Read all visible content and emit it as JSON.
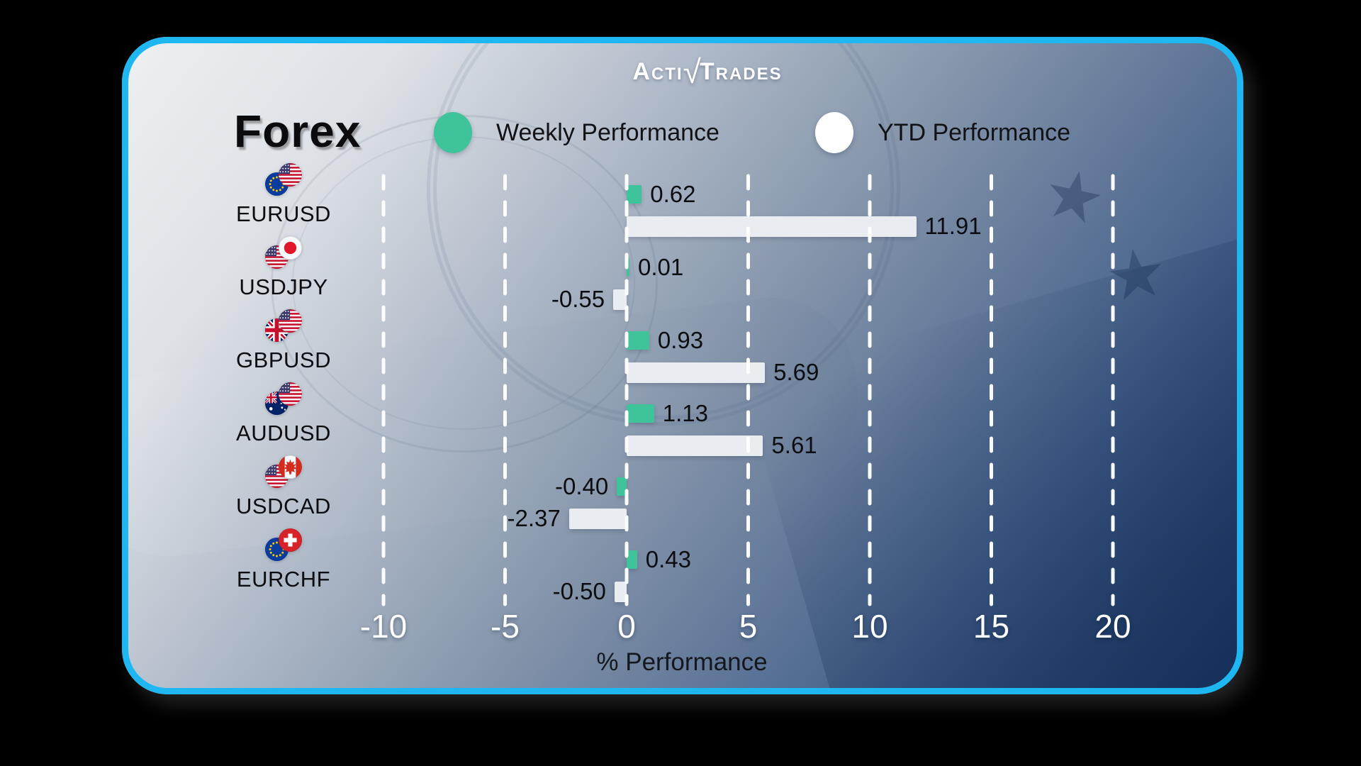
{
  "brand": {
    "full": "ActivTrades",
    "part1": "Acti",
    "separator": "√",
    "part2": "Trades"
  },
  "title": "Forex",
  "legend": {
    "items": [
      {
        "label": "Weekly Performance",
        "color": "#3fc39a"
      },
      {
        "label": "YTD Performance",
        "color": "#ffffff"
      }
    ]
  },
  "colors": {
    "card_border": "#1eb7f2",
    "bar_green": "#3fc39a",
    "bar_white": "#e9ecf0",
    "outer_background": "#000000",
    "axis_text": "#ffffff",
    "label_text": "#0b0d10"
  },
  "chart_data": {
    "type": "bar",
    "orientation": "horizontal",
    "title": "Forex",
    "categories": [
      "EURUSD",
      "USDJPY",
      "GBPUSD",
      "AUDUSD",
      "USDCAD",
      "EURCHF"
    ],
    "series": [
      {
        "name": "Weekly Performance",
        "color": "#3fc39a",
        "values": [
          0.62,
          0.01,
          0.93,
          1.13,
          -0.4,
          0.43
        ]
      },
      {
        "name": "YTD Performance",
        "color": "#e9ecf0",
        "values": [
          11.91,
          -0.55,
          5.69,
          5.61,
          -2.37,
          -0.5
        ]
      }
    ],
    "value_labels": {
      "weekly": [
        "0.62",
        "0.01",
        "0.93",
        "1.13",
        "-0.40",
        "0.43"
      ],
      "ytd": [
        "11.91",
        "-0.55",
        "5.69",
        "5.61",
        "-2.37",
        "-0.50"
      ]
    },
    "xlabel": "% Performance",
    "x_ticks": [
      -10,
      -5,
      0,
      5,
      10,
      15,
      20
    ],
    "x_tick_labels": [
      "-10",
      "-5",
      "0",
      "5",
      "10",
      "15",
      "20"
    ],
    "xlim": [
      -11,
      21
    ],
    "grid": "dashed-vertical-white",
    "legend_position": "top"
  },
  "pairs": [
    {
      "name": "EURUSD",
      "flags": [
        "eu",
        "us"
      ]
    },
    {
      "name": "USDJPY",
      "flags": [
        "us",
        "jp"
      ]
    },
    {
      "name": "GBPUSD",
      "flags": [
        "gb",
        "us"
      ]
    },
    {
      "name": "AUDUSD",
      "flags": [
        "au",
        "us"
      ]
    },
    {
      "name": "USDCAD",
      "flags": [
        "us",
        "ca"
      ]
    },
    {
      "name": "EURCHF",
      "flags": [
        "eu",
        "ch"
      ]
    }
  ]
}
